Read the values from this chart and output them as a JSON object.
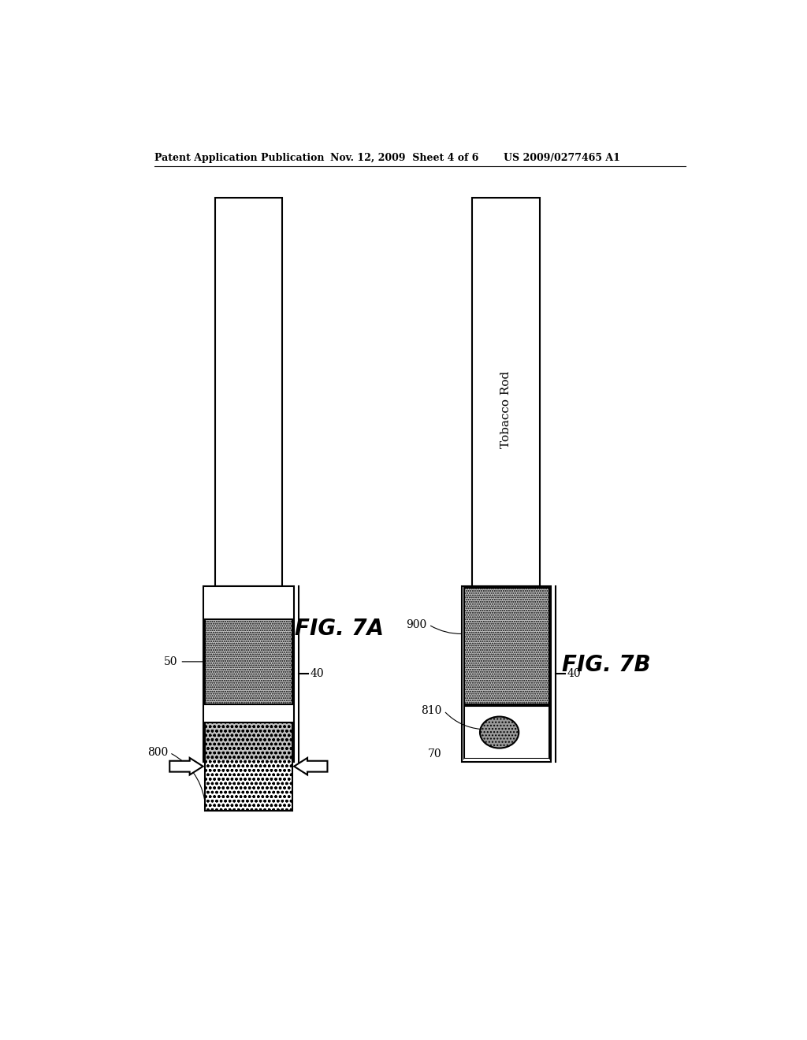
{
  "header_left": "Patent Application Publication",
  "header_mid": "Nov. 12, 2009  Sheet 4 of 6",
  "header_right": "US 2009/0277465 A1",
  "fig_a_label": "FIG. 7A",
  "fig_b_label": "FIG. 7B",
  "tobacco_rod_label": "Tobacco Rod",
  "background_color": "#ffffff",
  "line_color": "#000000",
  "gray_light": "#c0c0c0",
  "gray_medium": "#999999",
  "lw": 1.5
}
